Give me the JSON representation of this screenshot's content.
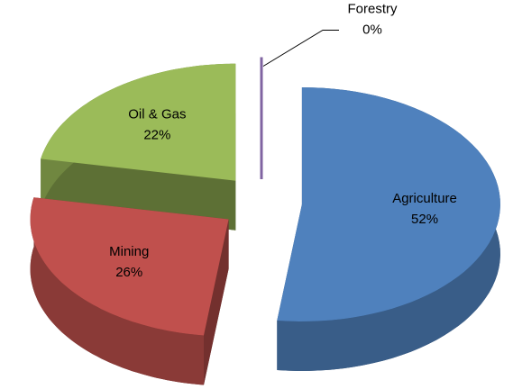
{
  "chart_data": {
    "type": "pie",
    "categories": [
      "Agriculture",
      "Mining",
      "Oil & Gas",
      "Forestry"
    ],
    "values": [
      52,
      26,
      22,
      0
    ],
    "value_labels": [
      "52%",
      "26%",
      "22%",
      "0%"
    ],
    "colors": [
      "#4f81bd",
      "#c0504d",
      "#9bbb59",
      "#8064a2"
    ]
  }
}
